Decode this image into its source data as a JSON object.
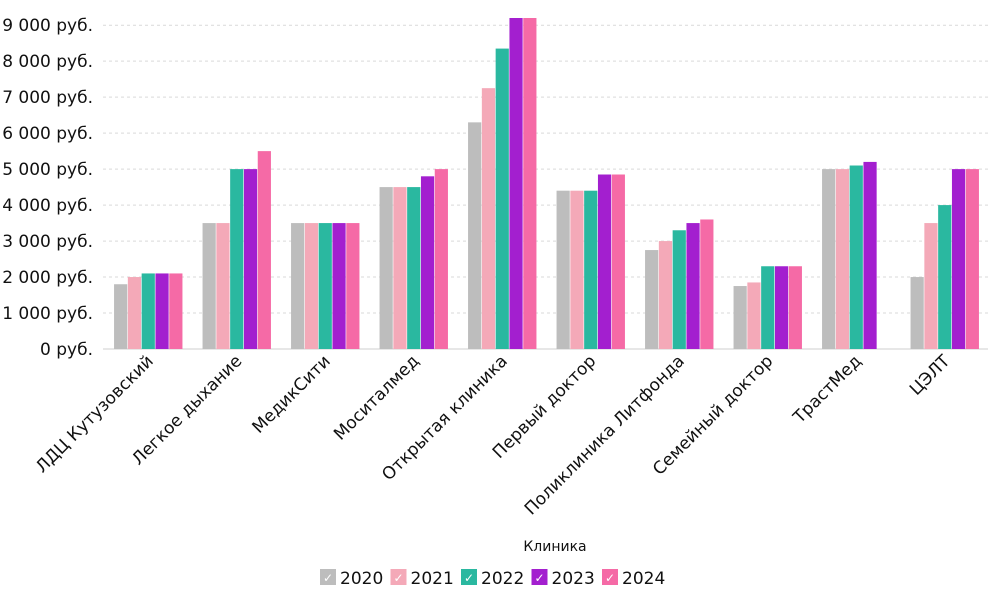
{
  "chart_data": {
    "type": "bar",
    "categories": [
      "ЛДЦ Кутузовский",
      "Легкое дыхание",
      "МедикСити",
      "Моситалмед",
      "Открытая клиника",
      "Первый доктор",
      "Поликлиника Литфонда",
      "Семейный доктор",
      "ТрастМед",
      "ЦЭЛТ"
    ],
    "series": [
      {
        "name": "2020",
        "color": "#bdbdbd",
        "values": [
          1800,
          3500,
          3500,
          4500,
          6300,
          4400,
          2750,
          1750,
          5000,
          2000
        ]
      },
      {
        "name": "2021",
        "color": "#f4a9b8",
        "values": [
          2000,
          3500,
          3500,
          4500,
          7250,
          4400,
          3000,
          1850,
          5000,
          3500
        ]
      },
      {
        "name": "2022",
        "color": "#2ab8a0",
        "values": [
          2100,
          5000,
          3500,
          4500,
          8350,
          4400,
          3300,
          2300,
          5100,
          4000
        ]
      },
      {
        "name": "2023",
        "color": "#a31fcf",
        "values": [
          2100,
          5000,
          3500,
          4800,
          9200,
          4850,
          3500,
          2300,
          5200,
          5000
        ]
      },
      {
        "name": "2024",
        "color": "#f56aa6",
        "values": [
          2100,
          5500,
          3500,
          5000,
          9200,
          4850,
          3600,
          2300,
          null,
          5000
        ]
      }
    ],
    "ylim": [
      0,
      9200
    ],
    "yticks": [
      0,
      1000,
      2000,
      3000,
      4000,
      5000,
      6000,
      7000,
      8000,
      9000
    ],
    "ytick_labels": [
      "0 руб.",
      "1 000 руб.",
      "2 000 руб.",
      "3 000 руб.",
      "4 000 руб.",
      "5 000 руб.",
      "6 000 руб.",
      "7 000 руб.",
      "8 000 руб.",
      "9 000 руб."
    ],
    "xlabel": "",
    "ylabel": "",
    "title": "",
    "grid": true,
    "legend": {
      "title": "Клиника",
      "position": "bottom-center",
      "check_glyph": "✓"
    }
  }
}
